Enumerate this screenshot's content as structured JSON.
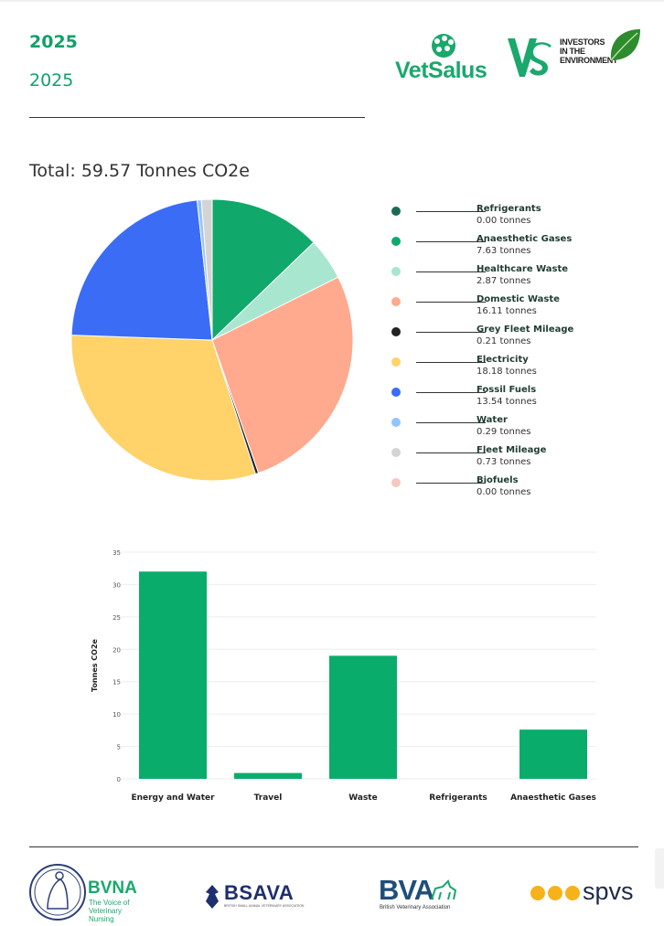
{
  "header": {
    "title": "2025",
    "subtitle": "2025",
    "logos": {
      "vetsalus": "VetSalus",
      "vs_mark": "VS",
      "investors": [
        "INVESTORS",
        "IN THE",
        "ENVIRONMENT"
      ]
    }
  },
  "total_label": "Total: 59.57 Tonnes CO2e",
  "legend": [
    {
      "name": "Refrigerants",
      "value": "0.00 tonnes",
      "color": "#1b6b54"
    },
    {
      "name": "Anaesthetic Gases",
      "value": "7.63 tonnes",
      "color": "#11a86b"
    },
    {
      "name": "Healthcare Waste",
      "value": "2.87 tonnes",
      "color": "#a8e6cf"
    },
    {
      "name": "Domestic Waste",
      "value": "16.11 tonnes",
      "color": "#ffa98f"
    },
    {
      "name": "Grey Fleet Mileage",
      "value": "0.21 tonnes",
      "color": "#222222"
    },
    {
      "name": "Electricity",
      "value": "18.18 tonnes",
      "color": "#ffd26a"
    },
    {
      "name": "Fossil Fuels",
      "value": "13.54 tonnes",
      "color": "#3b6cf6"
    },
    {
      "name": "Water",
      "value": "0.29 tonnes",
      "color": "#93c5fd"
    },
    {
      "name": "Fleet Mileage",
      "value": "0.73 tonnes",
      "color": "#d4d4d4"
    },
    {
      "name": "Biofuels",
      "value": "0.00 tonnes",
      "color": "#f5c9c0"
    }
  ],
  "chart_data": [
    {
      "type": "pie",
      "labels": [
        "Refrigerants",
        "Anaesthetic Gases",
        "Healthcare Waste",
        "Domestic Waste",
        "Grey Fleet Mileage",
        "Electricity",
        "Fossil Fuels",
        "Water",
        "Fleet Mileage",
        "Biofuels"
      ],
      "values": [
        0.0,
        7.63,
        2.87,
        16.11,
        0.21,
        18.18,
        13.54,
        0.29,
        0.73,
        0.0
      ],
      "colors": [
        "#1b6b54",
        "#11a86b",
        "#a8e6cf",
        "#ffa98f",
        "#222222",
        "#ffd26a",
        "#3b6cf6",
        "#93c5fd",
        "#d4d4d4",
        "#f5c9c0"
      ],
      "legend": "right",
      "title": "Total: 59.57 Tonnes CO2e"
    },
    {
      "type": "bar",
      "categories": [
        "Energy and Water",
        "Travel",
        "Waste",
        "Refrigerants",
        "Anaesthetic Gases"
      ],
      "values": [
        32.0,
        0.9,
        19.0,
        0,
        7.6
      ],
      "ylabel": "Tonnes CO2e",
      "ylim": [
        0,
        35
      ],
      "yticks": [
        "0",
        "5",
        "10",
        "15",
        "20",
        "25",
        "30",
        "35"
      ],
      "color": "#0aac6c",
      "grid": true
    }
  ],
  "footer": {
    "bvna": {
      "name": "BVNA",
      "tag1": "The Voice of",
      "tag2": "Veterinary Nursing"
    },
    "bsava": {
      "name": "BSAVA",
      "tag": "BRITISH SMALL ANIMAL VETERINARY ASSOCIATION"
    },
    "bva": {
      "name": "BVA",
      "tag": "British Veterinary Association"
    },
    "spvs": {
      "name": "spvs"
    }
  }
}
